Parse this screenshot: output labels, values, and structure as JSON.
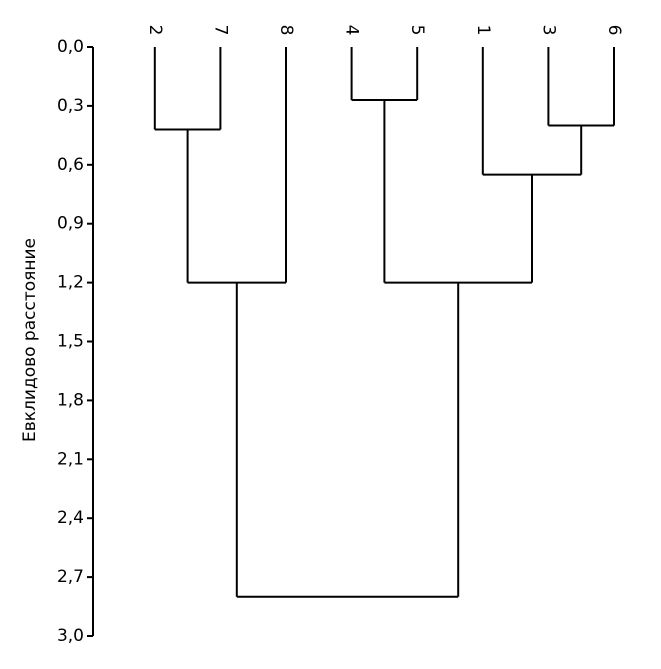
{
  "chart_data": {
    "type": "dendrogram",
    "y_label": "Евклидово расстояние",
    "ylim": [
      0,
      3.0
    ],
    "yticks": [
      {
        "value": 0,
        "label": "0,0"
      },
      {
        "value": 0.3,
        "label": "0,3"
      },
      {
        "value": 0.6,
        "label": "0,6"
      },
      {
        "value": 0.9,
        "label": "0,9"
      },
      {
        "value": 1.2,
        "label": "1,2"
      },
      {
        "value": 1.5,
        "label": "1,5"
      },
      {
        "value": 1.8,
        "label": "1,8"
      },
      {
        "value": 2.1,
        "label": "2,1"
      },
      {
        "value": 2.4,
        "label": "2,4"
      },
      {
        "value": 2.7,
        "label": "2,7"
      },
      {
        "value": 3.0,
        "label": "3,0"
      }
    ],
    "color": "#000000",
    "tree": {
      "height": 2.8,
      "children": [
        {
          "height": 1.2,
          "children": [
            {
              "height": 0.42,
              "children": [
                {
                  "label": "2"
                },
                {
                  "label": "7"
                }
              ]
            },
            {
              "label": "8"
            }
          ]
        },
        {
          "height": 1.2,
          "children": [
            {
              "height": 0.27,
              "children": [
                {
                  "label": "4"
                },
                {
                  "label": "5"
                }
              ]
            },
            {
              "height": 0.65,
              "children": [
                {
                  "label": "1"
                },
                {
                  "height": 0.4,
                  "children": [
                    {
                      "label": "3"
                    },
                    {
                      "label": "6"
                    }
                  ]
                }
              ]
            }
          ]
        }
      ]
    }
  }
}
